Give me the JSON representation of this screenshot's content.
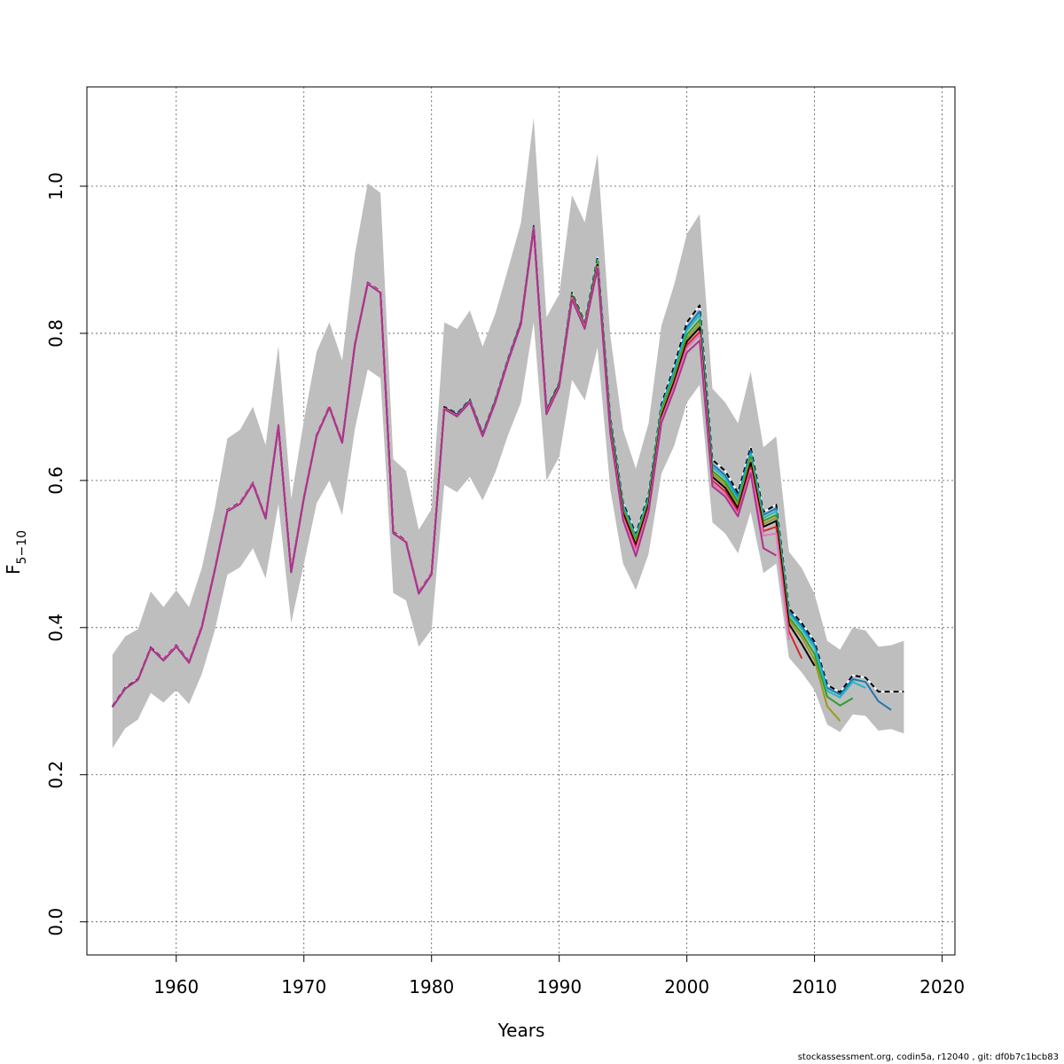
{
  "footer": "stockassessment.org, codin5a, r12040 , git: df0b7c1bcb83",
  "chart_data": {
    "type": "line",
    "xlabel": "Years",
    "ylabel": "F̅ 5–10",
    "ylabel_main": "F",
    "ylabel_sub": "5−10",
    "xlim": [
      1953,
      2021
    ],
    "ylim": [
      -0.045,
      1.135
    ],
    "xticks": [
      1960,
      1970,
      1980,
      1990,
      2000,
      2010,
      2020
    ],
    "yticks": [
      0.0,
      0.2,
      0.4,
      0.6,
      0.8,
      1.0
    ],
    "ytick_labels": [
      "0.0",
      "0.2",
      "0.4",
      "0.6",
      "0.8",
      "1.0"
    ],
    "grid": true,
    "band_color": "#bebebe",
    "band": {
      "x": [
        1955,
        1956,
        1957,
        1958,
        1959,
        1960,
        1961,
        1962,
        1963,
        1964,
        1965,
        1966,
        1967,
        1968,
        1969,
        1970,
        1971,
        1972,
        1973,
        1974,
        1975,
        1976,
        1977,
        1978,
        1979,
        1980,
        1981,
        1982,
        1983,
        1984,
        1985,
        1986,
        1987,
        1988,
        1989,
        1990,
        1991,
        1992,
        1993,
        1994,
        1995,
        1996,
        1997,
        1998,
        1999,
        2000,
        2001,
        2002,
        2003,
        2004,
        2005,
        2006,
        2007,
        2008,
        2009,
        2010,
        2011,
        2012,
        2013,
        2014,
        2015,
        2016,
        2017
      ],
      "upper": [
        0.363,
        0.388,
        0.398,
        0.449,
        0.428,
        0.451,
        0.428,
        0.481,
        0.561,
        0.657,
        0.669,
        0.7,
        0.648,
        0.783,
        0.575,
        0.682,
        0.775,
        0.815,
        0.763,
        0.908,
        1.004,
        0.991,
        0.629,
        0.613,
        0.533,
        0.561,
        0.815,
        0.806,
        0.831,
        0.782,
        0.827,
        0.888,
        0.95,
        1.093,
        0.822,
        0.853,
        0.988,
        0.951,
        1.044,
        0.797,
        0.669,
        0.616,
        0.678,
        0.81,
        0.866,
        0.935,
        0.962,
        0.725,
        0.706,
        0.678,
        0.748,
        0.645,
        0.66,
        0.503,
        0.481,
        0.446,
        0.382,
        0.37,
        0.4,
        0.396,
        0.374,
        0.376,
        0.382
      ],
      "lower": [
        0.236,
        0.263,
        0.275,
        0.311,
        0.298,
        0.315,
        0.296,
        0.337,
        0.395,
        0.472,
        0.482,
        0.508,
        0.467,
        0.568,
        0.406,
        0.487,
        0.569,
        0.6,
        0.553,
        0.67,
        0.751,
        0.739,
        0.447,
        0.437,
        0.374,
        0.397,
        0.594,
        0.584,
        0.605,
        0.573,
        0.611,
        0.662,
        0.706,
        0.815,
        0.6,
        0.632,
        0.737,
        0.709,
        0.781,
        0.588,
        0.487,
        0.451,
        0.5,
        0.609,
        0.647,
        0.706,
        0.73,
        0.543,
        0.528,
        0.501,
        0.557,
        0.474,
        0.487,
        0.359,
        0.339,
        0.315,
        0.268,
        0.258,
        0.282,
        0.28,
        0.26,
        0.262,
        0.256
      ]
    },
    "series": [
      {
        "color": "#000000",
        "dashed": true,
        "start": 1955,
        "values": [
          0.293,
          0.318,
          0.33,
          0.373,
          0.357,
          0.376,
          0.354,
          0.402,
          0.478,
          0.56,
          0.57,
          0.597,
          0.55,
          0.675,
          0.477,
          0.578,
          0.662,
          0.701,
          0.653,
          0.786,
          0.869,
          0.857,
          0.53,
          0.518,
          0.448,
          0.474,
          0.7,
          0.691,
          0.71,
          0.664,
          0.71,
          0.766,
          0.816,
          0.946,
          0.697,
          0.733,
          0.855,
          0.815,
          0.903,
          0.686,
          0.57,
          0.527,
          0.581,
          0.703,
          0.755,
          0.815,
          0.838,
          0.628,
          0.613,
          0.583,
          0.645,
          0.557,
          0.567,
          0.426,
          0.406,
          0.381,
          0.322,
          0.312,
          0.335,
          0.332,
          0.313,
          0.313,
          0.313
        ]
      },
      {
        "color": "#1f77b4",
        "dashed": false,
        "start": 1955,
        "values": [
          0.292,
          0.317,
          0.329,
          0.372,
          0.356,
          0.375,
          0.353,
          0.401,
          0.477,
          0.559,
          0.569,
          0.596,
          0.549,
          0.674,
          0.476,
          0.577,
          0.661,
          0.7,
          0.652,
          0.785,
          0.868,
          0.856,
          0.529,
          0.517,
          0.447,
          0.473,
          0.699,
          0.69,
          0.709,
          0.663,
          0.709,
          0.765,
          0.815,
          0.945,
          0.696,
          0.732,
          0.853,
          0.813,
          0.9,
          0.683,
          0.567,
          0.524,
          0.578,
          0.7,
          0.75,
          0.808,
          0.83,
          0.622,
          0.607,
          0.578,
          0.64,
          0.553,
          0.562,
          0.422,
          0.402,
          0.377,
          0.318,
          0.309,
          0.33,
          0.326,
          0.3,
          0.288
        ]
      },
      {
        "color": "#17becf",
        "dashed": false,
        "start": 1955,
        "values": [
          0.292,
          0.317,
          0.329,
          0.372,
          0.356,
          0.375,
          0.353,
          0.401,
          0.477,
          0.559,
          0.569,
          0.596,
          0.549,
          0.674,
          0.476,
          0.577,
          0.661,
          0.7,
          0.652,
          0.785,
          0.868,
          0.856,
          0.529,
          0.517,
          0.447,
          0.473,
          0.699,
          0.69,
          0.709,
          0.663,
          0.709,
          0.765,
          0.815,
          0.945,
          0.696,
          0.732,
          0.853,
          0.813,
          0.899,
          0.681,
          0.565,
          0.522,
          0.576,
          0.698,
          0.747,
          0.804,
          0.825,
          0.618,
          0.603,
          0.574,
          0.636,
          0.549,
          0.558,
          0.419,
          0.398,
          0.372,
          0.314,
          0.305,
          0.326,
          0.318
        ]
      },
      {
        "color": "#2ca02c",
        "dashed": false,
        "start": 1955,
        "values": [
          0.292,
          0.317,
          0.329,
          0.372,
          0.356,
          0.375,
          0.353,
          0.401,
          0.477,
          0.559,
          0.569,
          0.596,
          0.549,
          0.674,
          0.476,
          0.577,
          0.661,
          0.7,
          0.652,
          0.785,
          0.868,
          0.856,
          0.529,
          0.517,
          0.447,
          0.473,
          0.699,
          0.689,
          0.708,
          0.662,
          0.708,
          0.764,
          0.814,
          0.944,
          0.695,
          0.731,
          0.852,
          0.812,
          0.897,
          0.678,
          0.562,
          0.519,
          0.573,
          0.694,
          0.742,
          0.798,
          0.818,
          0.613,
          0.598,
          0.57,
          0.632,
          0.545,
          0.553,
          0.414,
          0.392,
          0.364,
          0.306,
          0.294,
          0.304
        ]
      },
      {
        "color": "#9a9a1a",
        "dashed": false,
        "start": 1955,
        "values": [
          0.292,
          0.317,
          0.329,
          0.372,
          0.356,
          0.375,
          0.353,
          0.401,
          0.477,
          0.559,
          0.569,
          0.596,
          0.549,
          0.674,
          0.476,
          0.577,
          0.661,
          0.7,
          0.652,
          0.785,
          0.868,
          0.856,
          0.529,
          0.517,
          0.447,
          0.473,
          0.699,
          0.689,
          0.708,
          0.662,
          0.708,
          0.764,
          0.814,
          0.944,
          0.694,
          0.73,
          0.851,
          0.811,
          0.895,
          0.675,
          0.559,
          0.516,
          0.57,
          0.691,
          0.738,
          0.793,
          0.813,
          0.609,
          0.594,
          0.566,
          0.628,
          0.541,
          0.549,
          0.41,
          0.387,
          0.356,
          0.293,
          0.273
        ]
      },
      {
        "color": "#000000",
        "dashed": false,
        "start": 1955,
        "values": [
          0.292,
          0.317,
          0.329,
          0.372,
          0.356,
          0.375,
          0.353,
          0.401,
          0.477,
          0.559,
          0.569,
          0.596,
          0.549,
          0.674,
          0.476,
          0.577,
          0.661,
          0.7,
          0.652,
          0.785,
          0.868,
          0.856,
          0.529,
          0.517,
          0.447,
          0.473,
          0.699,
          0.689,
          0.708,
          0.662,
          0.708,
          0.764,
          0.814,
          0.944,
          0.694,
          0.73,
          0.85,
          0.81,
          0.893,
          0.672,
          0.556,
          0.512,
          0.567,
          0.687,
          0.734,
          0.789,
          0.808,
          0.605,
          0.59,
          0.562,
          0.624,
          0.537,
          0.545,
          0.405,
          0.378,
          0.348
        ]
      },
      {
        "color": "#d62728",
        "dashed": false,
        "start": 1955,
        "values": [
          0.292,
          0.317,
          0.329,
          0.372,
          0.356,
          0.375,
          0.353,
          0.401,
          0.477,
          0.559,
          0.569,
          0.596,
          0.549,
          0.674,
          0.476,
          0.577,
          0.661,
          0.7,
          0.652,
          0.785,
          0.868,
          0.856,
          0.529,
          0.517,
          0.447,
          0.473,
          0.698,
          0.688,
          0.707,
          0.661,
          0.707,
          0.763,
          0.813,
          0.943,
          0.693,
          0.729,
          0.849,
          0.809,
          0.891,
          0.669,
          0.552,
          0.508,
          0.563,
          0.684,
          0.73,
          0.784,
          0.802,
          0.6,
          0.585,
          0.558,
          0.618,
          0.531,
          0.537,
          0.395,
          0.358
        ]
      },
      {
        "color": "#e377c2",
        "dashed": false,
        "start": 1955,
        "values": [
          0.292,
          0.317,
          0.329,
          0.372,
          0.356,
          0.375,
          0.353,
          0.401,
          0.477,
          0.559,
          0.569,
          0.596,
          0.549,
          0.674,
          0.476,
          0.577,
          0.661,
          0.7,
          0.652,
          0.785,
          0.868,
          0.856,
          0.529,
          0.517,
          0.447,
          0.473,
          0.698,
          0.688,
          0.707,
          0.661,
          0.707,
          0.763,
          0.813,
          0.943,
          0.692,
          0.728,
          0.848,
          0.808,
          0.89,
          0.667,
          0.549,
          0.504,
          0.56,
          0.681,
          0.727,
          0.78,
          0.798,
          0.596,
          0.581,
          0.554,
          0.614,
          0.525,
          0.528,
          0.383
        ]
      },
      {
        "color": "#b03090",
        "dashed": false,
        "start": 1955,
        "values": [
          0.292,
          0.317,
          0.329,
          0.372,
          0.355,
          0.374,
          0.352,
          0.4,
          0.476,
          0.558,
          0.568,
          0.595,
          0.548,
          0.673,
          0.475,
          0.576,
          0.66,
          0.699,
          0.651,
          0.784,
          0.867,
          0.855,
          0.528,
          0.516,
          0.446,
          0.472,
          0.697,
          0.687,
          0.706,
          0.66,
          0.706,
          0.762,
          0.812,
          0.942,
          0.69,
          0.727,
          0.846,
          0.806,
          0.888,
          0.664,
          0.546,
          0.497,
          0.557,
          0.678,
          0.723,
          0.774,
          0.79,
          0.592,
          0.578,
          0.551,
          0.61,
          0.508,
          0.498
        ]
      }
    ]
  }
}
